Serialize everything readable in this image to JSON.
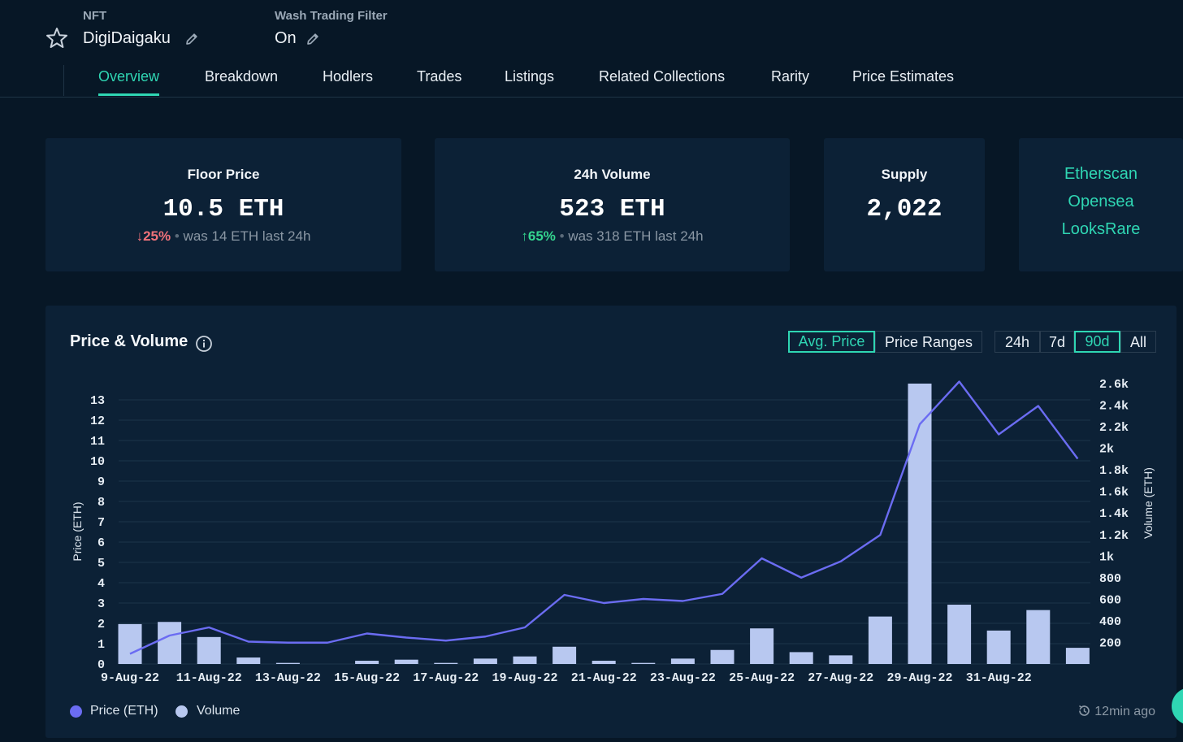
{
  "header": {
    "nft_label": "NFT",
    "collection_name": "DigiDaigaku",
    "wash_label": "Wash Trading Filter",
    "wash_value": "On"
  },
  "tabs": [
    {
      "label": "Overview",
      "active": true
    },
    {
      "label": "Breakdown"
    },
    {
      "label": "Hodlers"
    },
    {
      "label": "Trades"
    },
    {
      "label": "Listings"
    },
    {
      "label": "Related Collections"
    },
    {
      "label": "Rarity"
    },
    {
      "label": "Price Estimates"
    }
  ],
  "stats": {
    "floor": {
      "title": "Floor Price",
      "value": "10.5 ETH",
      "change": "25%",
      "note": "was 14 ETH last 24h"
    },
    "volume": {
      "title": "24h Volume",
      "value": "523 ETH",
      "change": "65%",
      "note": "was 318 ETH last 24h"
    },
    "supply": {
      "title": "Supply",
      "value": "2,022"
    }
  },
  "links": [
    "Etherscan",
    "Opensea",
    "LooksRare"
  ],
  "panel": {
    "title": "Price & Volume",
    "mode_buttons": [
      "Avg. Price",
      "Price Ranges"
    ],
    "selected_mode": "Avg. Price",
    "range_buttons": [
      "24h",
      "7d",
      "90d",
      "All"
    ],
    "selected_range": "90d",
    "updated": "12min ago"
  },
  "colors": {
    "accent": "#2fd6b3",
    "price_line": "#6b6cf2",
    "volume_bar": "#b8c8f0"
  },
  "chart_data": {
    "type": "bar",
    "x_tick_labels": [
      "9-Aug-22",
      "11-Aug-22",
      "13-Aug-22",
      "15-Aug-22",
      "17-Aug-22",
      "19-Aug-22",
      "21-Aug-22",
      "23-Aug-22",
      "25-Aug-22",
      "27-Aug-22",
      "29-Aug-22",
      "31-Aug-22"
    ],
    "x": [
      "9-Aug-22",
      "10-Aug-22",
      "11-Aug-22",
      "12-Aug-22",
      "13-Aug-22",
      "14-Aug-22",
      "15-Aug-22",
      "16-Aug-22",
      "17-Aug-22",
      "18-Aug-22",
      "19-Aug-22",
      "20-Aug-22",
      "21-Aug-22",
      "22-Aug-22",
      "23-Aug-22",
      "24-Aug-22",
      "25-Aug-22",
      "26-Aug-22",
      "27-Aug-22",
      "28-Aug-22",
      "29-Aug-22",
      "30-Aug-22",
      "31-Aug-22",
      "1-Sep-22",
      "2-Sep-22"
    ],
    "ylabel": "Price (ETH)",
    "y2label": "Volume (ETH)",
    "ylim": [
      0,
      13.9
    ],
    "y2lim": [
      0,
      2600
    ],
    "y_ticks": [
      0,
      1,
      2,
      3,
      4,
      5,
      6,
      7,
      8,
      9,
      10,
      11,
      12,
      13
    ],
    "y2_ticks": [
      200,
      400,
      600,
      800,
      1000,
      1200,
      1400,
      1600,
      1800,
      2000,
      2200,
      2400,
      2600
    ],
    "y2_tick_labels": [
      "200",
      "400",
      "600",
      "800",
      "1k",
      "1.2k",
      "1.4k",
      "1.6k",
      "1.8k",
      "2k",
      "2.2k",
      "2.4k",
      "2.6k"
    ],
    "series": [
      {
        "name": "Volume",
        "axis": "right",
        "type": "bar",
        "values": [
          370,
          390,
          250,
          60,
          10,
          0,
          30,
          40,
          10,
          50,
          70,
          160,
          30,
          10,
          50,
          130,
          330,
          110,
          80,
          440,
          2600,
          550,
          310,
          500,
          150
        ]
      },
      {
        "name": "Price (ETH)",
        "axis": "left",
        "type": "line",
        "values": [
          0.5,
          1.4,
          1.8,
          1.1,
          1.05,
          1.05,
          1.5,
          1.3,
          1.15,
          1.35,
          1.8,
          3.4,
          3.0,
          3.2,
          3.1,
          3.45,
          5.2,
          4.25,
          5.05,
          6.35,
          11.8,
          13.9,
          11.3,
          12.7,
          10.1
        ]
      }
    ]
  }
}
